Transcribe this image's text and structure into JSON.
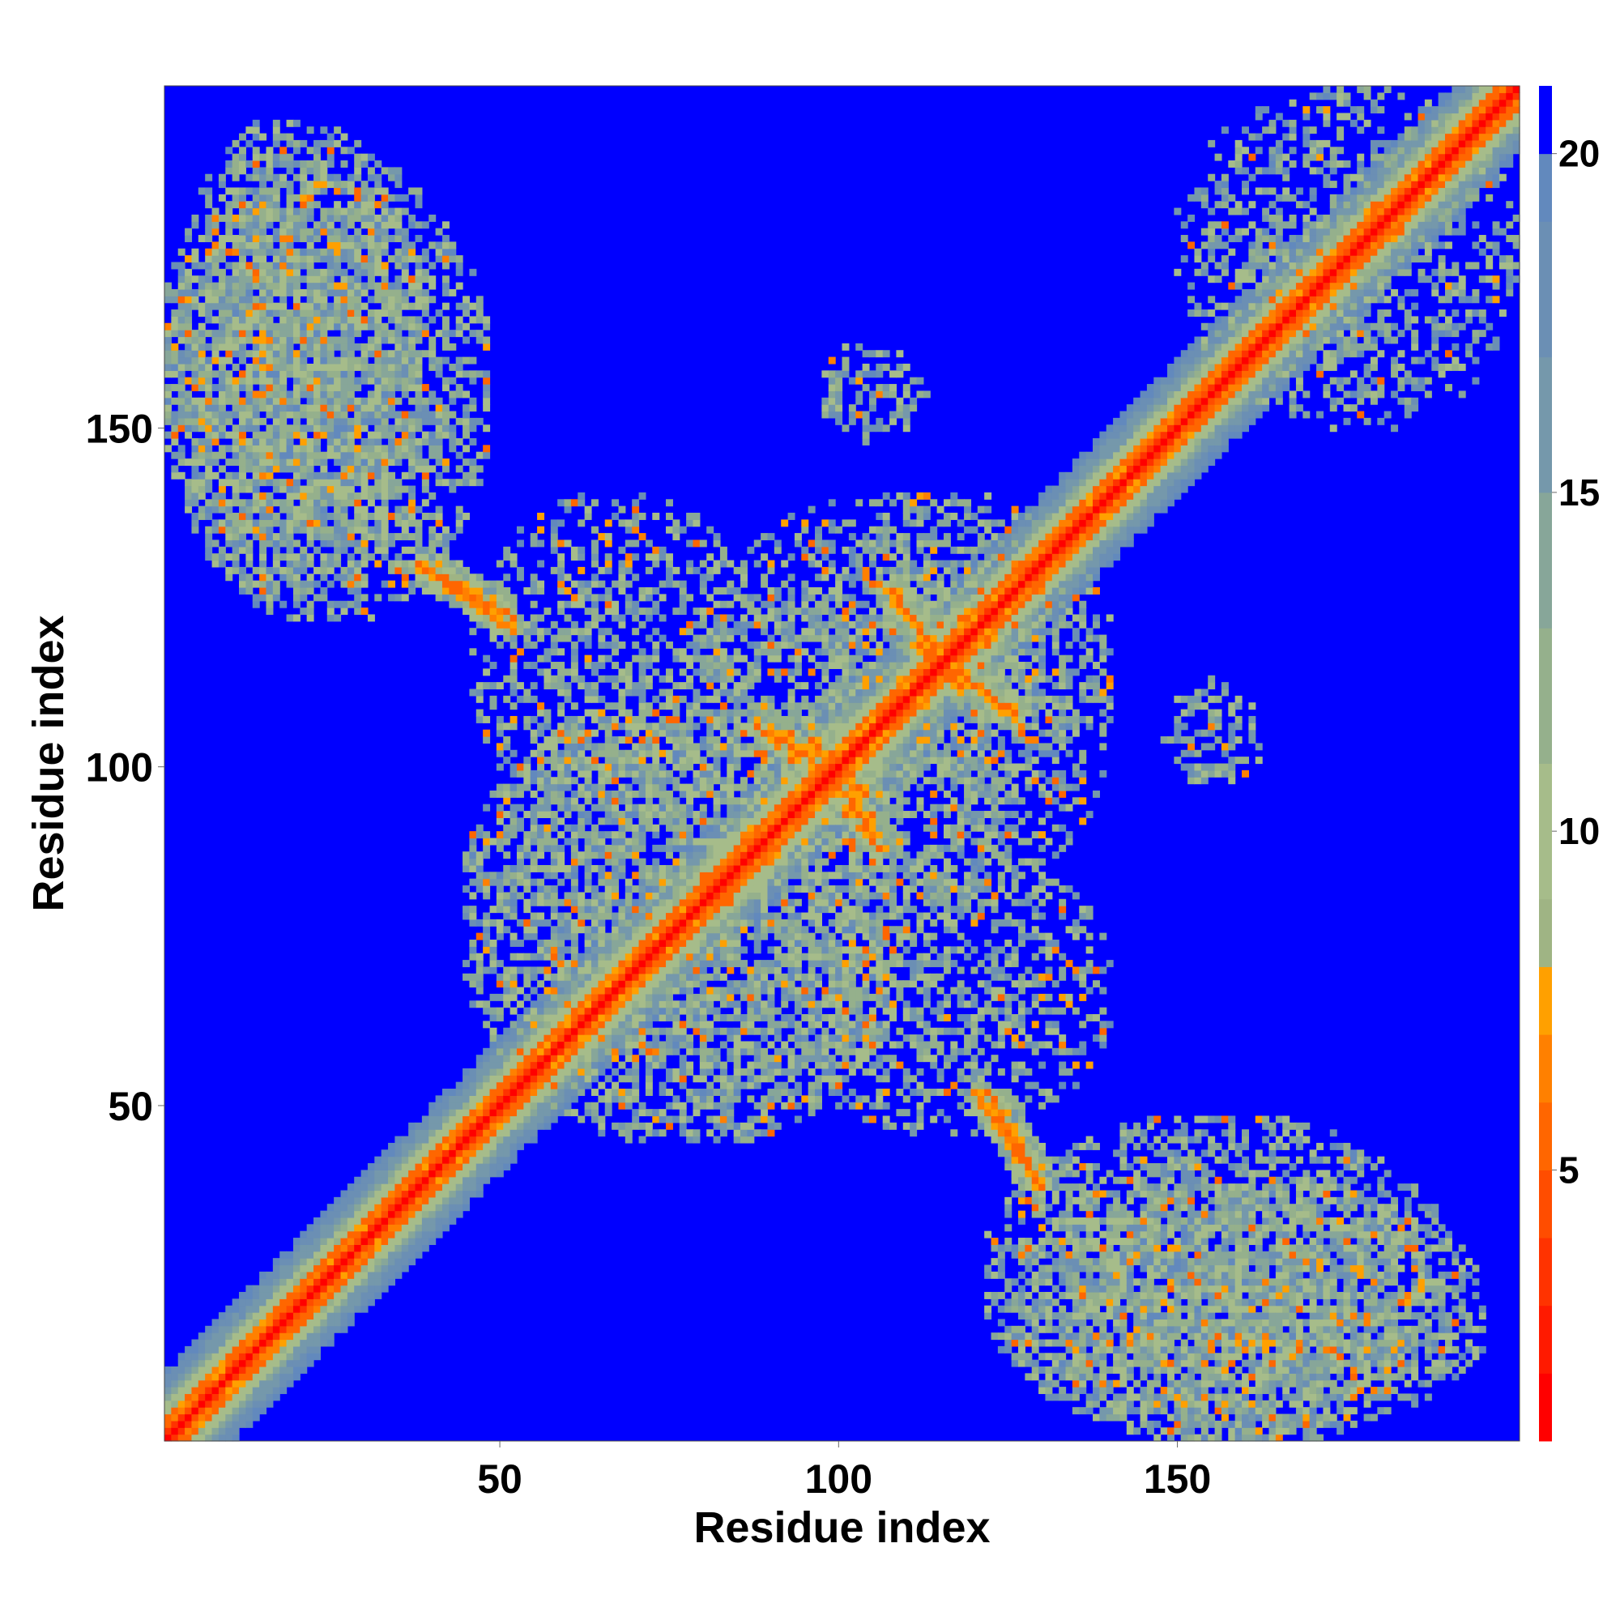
{
  "chart_data": {
    "type": "heatmap",
    "title": "",
    "xlabel": "Residue index",
    "ylabel": "Residue index",
    "xlim": [
      1,
      200
    ],
    "ylim": [
      1,
      200
    ],
    "x_ticks": [
      50,
      100,
      150
    ],
    "y_ticks": [
      50,
      100,
      150
    ],
    "n_residues": 200,
    "grid": false,
    "colorbar": {
      "placement": "right",
      "ticks": [
        5,
        10,
        15,
        20
      ],
      "range": [
        1,
        21
      ],
      "levels": [
        {
          "max": 2,
          "color": "#ff0000"
        },
        {
          "max": 3,
          "color": "#ff1a00"
        },
        {
          "max": 4,
          "color": "#ff3300"
        },
        {
          "max": 5,
          "color": "#ff4d00"
        },
        {
          "max": 6,
          "color": "#ff6600"
        },
        {
          "max": 7,
          "color": "#ff8000"
        },
        {
          "max": 8,
          "color": "#ffa000"
        },
        {
          "max": 9,
          "color": "#9fb484"
        },
        {
          "max": 11,
          "color": "#a6bc8a"
        },
        {
          "max": 13,
          "color": "#95b08c"
        },
        {
          "max": 15,
          "color": "#87a699"
        },
        {
          "max": 17,
          "color": "#7598ab"
        },
        {
          "max": 19,
          "color": "#6b8fb4"
        },
        {
          "max": 20,
          "color": "#6289bd"
        },
        {
          "max": 999,
          "color": "#0000ff"
        }
      ]
    },
    "value_description": "pairwise residue distance (Angstrom), values above 20 shown as blue",
    "contact_regions": [
      {
        "kind": "diagonal",
        "from": 1,
        "to": 200
      },
      {
        "kind": "block",
        "x": [
          1,
          38
        ],
        "y": [
          125,
          195
        ],
        "density": "dense"
      },
      {
        "kind": "block",
        "x": [
          122,
          190
        ],
        "y": [
          1,
          48
        ],
        "density": "dense"
      },
      {
        "kind": "antidiagonal",
        "x": [
          38,
          52
        ],
        "y": [
          122,
          130
        ],
        "density": "strong"
      },
      {
        "kind": "antidiagonal",
        "x": [
          120,
          130
        ],
        "y": [
          38,
          52
        ],
        "density": "strong"
      },
      {
        "kind": "antidiagonal",
        "x": [
          108,
          118
        ],
        "y": [
          112,
          126
        ],
        "density": "strong"
      },
      {
        "kind": "antidiagonal",
        "x": [
          112,
          126
        ],
        "y": [
          108,
          118
        ],
        "density": "strong"
      },
      {
        "kind": "antidiagonal",
        "x": [
          96,
          106
        ],
        "y": [
          88,
          104
        ],
        "density": "strong"
      },
      {
        "kind": "antidiagonal",
        "x": [
          88,
          104
        ],
        "y": [
          96,
          106
        ],
        "density": "strong"
      },
      {
        "kind": "block",
        "x": [
          150,
          200
        ],
        "y": [
          152,
          200
        ],
        "density": "sparse"
      },
      {
        "kind": "block",
        "x": [
          90,
          140
        ],
        "y": [
          80,
          140
        ],
        "density": "medium"
      },
      {
        "kind": "block",
        "x": [
          45,
          110
        ],
        "y": [
          45,
          110
        ],
        "density": "medium"
      },
      {
        "kind": "block",
        "x": [
          92,
          140
        ],
        "y": [
          46,
          88
        ],
        "density": "sparse"
      },
      {
        "kind": "block",
        "x": [
          46,
          88
        ],
        "y": [
          92,
          140
        ],
        "density": "sparse"
      },
      {
        "kind": "block",
        "x": [
          148,
          163
        ],
        "y": [
          97,
          113
        ],
        "density": "sparse"
      },
      {
        "kind": "block",
        "x": [
          97,
          113
        ],
        "y": [
          148,
          163
        ],
        "density": "sparse"
      }
    ]
  }
}
